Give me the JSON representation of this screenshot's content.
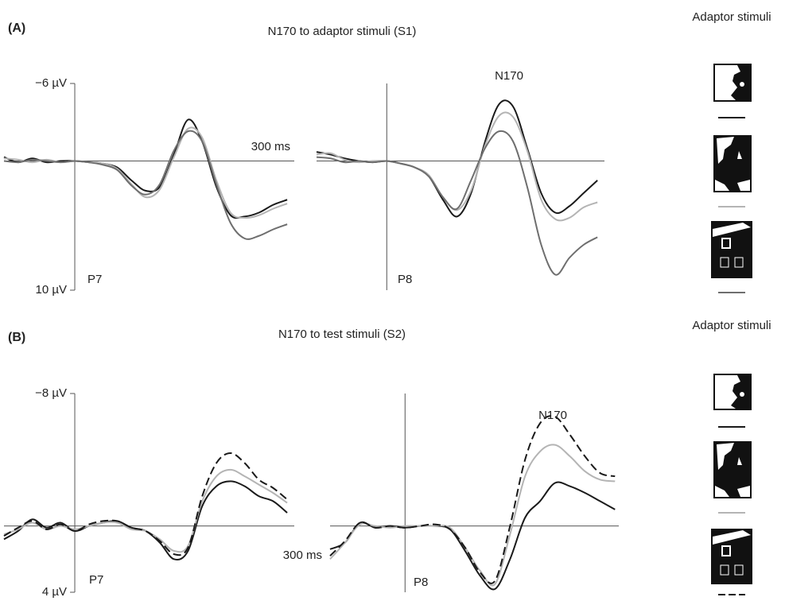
{
  "panels": [
    {
      "label": "(A)",
      "title": "N170 to adaptor stimuli (S1)",
      "legend_title": "Adaptor stimuli"
    },
    {
      "label": "(B)",
      "title": "N170 to test stimuli (S2)",
      "legend_title": "Adaptor stimuli"
    }
  ],
  "chart_data": [
    {
      "type": "line",
      "channel": "P7",
      "xlim": [
        -100,
        310
      ],
      "ylim": [
        10,
        -6
      ],
      "yticks": [
        {
          "value": -6,
          "label": "−6 µV"
        },
        {
          "value": 10,
          "label": "10 µV"
        }
      ],
      "xlabel": "300 ms",
      "x": [
        -100,
        -80,
        -60,
        -40,
        -20,
        0,
        20,
        40,
        60,
        80,
        100,
        120,
        140,
        160,
        180,
        200,
        220,
        240,
        260,
        280,
        300
      ],
      "series": [
        {
          "color": "#1a1a1a",
          "values": [
            -0.3,
            0.1,
            -0.2,
            0.1,
            0,
            0,
            0.1,
            0.2,
            0.5,
            1.5,
            2.3,
            2.0,
            -0.5,
            -3.2,
            -1.5,
            2.0,
            4.2,
            4.3,
            4.0,
            3.4,
            3.0
          ]
        },
        {
          "color": "#b4b4b4",
          "values": [
            -0.2,
            -0.1,
            0.1,
            -0.1,
            0.1,
            0,
            0.1,
            0.2,
            0.6,
            1.8,
            2.8,
            2.2,
            -0.3,
            -2.5,
            -1.8,
            1.5,
            4.0,
            4.4,
            4.2,
            3.7,
            3.3
          ]
        },
        {
          "color": "#6e6e6e",
          "values": [
            0,
            0.1,
            -0.1,
            0,
            0.1,
            0,
            0.1,
            0.3,
            0.7,
            1.9,
            2.6,
            1.8,
            -0.8,
            -2.3,
            -1.5,
            1.8,
            4.8,
            6.0,
            5.8,
            5.3,
            4.9
          ]
        }
      ]
    },
    {
      "type": "line",
      "channel": "P8",
      "peak_label": "N170",
      "xlim": [
        -100,
        310
      ],
      "ylim": [
        10,
        -6
      ],
      "x": [
        -100,
        -80,
        -60,
        -40,
        -20,
        0,
        20,
        40,
        60,
        80,
        100,
        120,
        140,
        160,
        180,
        200,
        220,
        240,
        260,
        280,
        300
      ],
      "series": [
        {
          "color": "#1a1a1a",
          "values": [
            -0.7,
            -0.5,
            -0.2,
            0,
            0.1,
            0,
            0.2,
            0.5,
            1.2,
            3.0,
            4.3,
            2.5,
            -1.5,
            -4.4,
            -4.2,
            -1.0,
            2.5,
            4.0,
            3.5,
            2.5,
            1.5
          ]
        },
        {
          "color": "#b4b4b4",
          "values": [
            -0.5,
            -0.6,
            -0.1,
            0.1,
            0,
            0,
            0.2,
            0.5,
            1.1,
            2.8,
            3.8,
            2.3,
            -1.2,
            -3.5,
            -3.4,
            -0.8,
            3.0,
            4.5,
            4.4,
            3.6,
            3.2
          ]
        },
        {
          "color": "#6e6e6e",
          "values": [
            -0.3,
            -0.2,
            0.1,
            0,
            0.1,
            0,
            0.2,
            0.5,
            1.2,
            2.8,
            3.7,
            1.5,
            -1.0,
            -2.3,
            -1.5,
            2.0,
            6.5,
            8.8,
            7.5,
            6.5,
            5.9
          ]
        }
      ]
    },
    {
      "type": "line",
      "channel": "P7",
      "xlim": [
        -100,
        310
      ],
      "ylim": [
        4,
        -8
      ],
      "yticks": [
        {
          "value": -8,
          "label": "−8 µV"
        },
        {
          "value": 4,
          "label": "4 µV"
        }
      ],
      "x": [
        -100,
        -80,
        -60,
        -40,
        -20,
        0,
        20,
        40,
        60,
        80,
        100,
        120,
        140,
        160,
        180,
        200,
        220,
        240,
        260,
        280,
        300
      ],
      "series": [
        {
          "color": "#1a1a1a",
          "values": [
            0.8,
            0.3,
            -0.4,
            0.1,
            -0.2,
            0.3,
            0,
            -0.2,
            -0.3,
            0.1,
            0.3,
            1.0,
            2.0,
            1.5,
            -1.2,
            -2.4,
            -2.7,
            -2.4,
            -1.8,
            -1.5,
            -0.8
          ]
        },
        {
          "color": "#b4b4b4",
          "values": [
            0.5,
            0.2,
            -0.2,
            0.2,
            0,
            0.2,
            0,
            -0.2,
            -0.2,
            0.2,
            0.3,
            0.8,
            1.5,
            1.2,
            -1.5,
            -3.0,
            -3.4,
            -3.0,
            -2.5,
            -2.0,
            -1.4
          ]
        },
        {
          "color": "#1a1a1a",
          "dash": true,
          "values": [
            0.6,
            0.1,
            -0.3,
            0.2,
            -0.1,
            0.3,
            -0.1,
            -0.3,
            -0.3,
            0.1,
            0.3,
            0.9,
            1.7,
            1.3,
            -1.8,
            -3.8,
            -4.4,
            -3.8,
            -2.8,
            -2.3,
            -1.6
          ]
        }
      ]
    },
    {
      "type": "line",
      "channel": "P8",
      "peak_label": "N170",
      "xlabel": "300 ms",
      "xlim": [
        -100,
        285
      ],
      "ylim": [
        4,
        -8
      ],
      "x": [
        -100,
        -80,
        -60,
        -40,
        -20,
        0,
        20,
        40,
        60,
        80,
        100,
        120,
        140,
        160,
        180,
        200,
        220,
        240,
        260,
        280
      ],
      "series": [
        {
          "color": "#1a1a1a",
          "values": [
            1.4,
            1.0,
            -0.2,
            0.1,
            0,
            0.1,
            0,
            0,
            0.2,
            1.5,
            3.0,
            3.8,
            2.0,
            -0.5,
            -1.5,
            -2.6,
            -2.4,
            -2.0,
            -1.5,
            -1.0
          ]
        },
        {
          "color": "#b4b4b4",
          "values": [
            2.0,
            1.0,
            -0.1,
            0,
            0.1,
            0,
            0,
            0,
            0.1,
            1.3,
            2.7,
            3.5,
            0.5,
            -3.0,
            -4.5,
            -4.9,
            -4.2,
            -3.3,
            -2.8,
            -2.7
          ]
        },
        {
          "color": "#1a1a1a",
          "dash": true,
          "values": [
            1.8,
            0.9,
            -0.2,
            0.1,
            0,
            0.1,
            0,
            -0.1,
            0.2,
            1.3,
            2.8,
            3.3,
            0,
            -4.0,
            -6.2,
            -6.6,
            -5.5,
            -4.2,
            -3.2,
            -3.0
          ]
        }
      ]
    }
  ]
}
